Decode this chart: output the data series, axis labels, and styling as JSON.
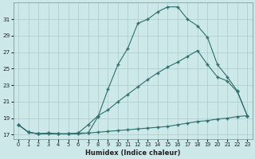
{
  "xlabel": "Humidex (Indice chaleur)",
  "bg_color": "#cce8e8",
  "line_color": "#2e6e6e",
  "grid_color": "#aacccc",
  "xlim": [
    -0.5,
    23.5
  ],
  "ylim": [
    16.5,
    33.0
  ],
  "yticks": [
    17,
    19,
    21,
    23,
    25,
    27,
    29,
    31
  ],
  "xticks": [
    0,
    1,
    2,
    3,
    4,
    5,
    6,
    7,
    8,
    9,
    10,
    11,
    12,
    13,
    14,
    15,
    16,
    17,
    18,
    19,
    20,
    21,
    22,
    23
  ],
  "curve1_x": [
    0,
    1,
    2,
    3,
    4,
    5,
    6,
    7,
    8,
    9,
    10,
    11,
    12,
    13,
    14,
    15,
    16,
    17,
    18,
    19,
    20,
    21,
    22,
    23
  ],
  "curve1_y": [
    18.2,
    17.3,
    17.1,
    17.1,
    17.1,
    17.1,
    17.1,
    17.2,
    17.3,
    17.4,
    17.5,
    17.6,
    17.7,
    17.8,
    17.9,
    18.0,
    18.2,
    18.4,
    18.6,
    18.7,
    18.9,
    19.0,
    19.2,
    19.3
  ],
  "curve2_x": [
    0,
    1,
    2,
    3,
    4,
    5,
    6,
    7,
    8,
    9,
    10,
    11,
    12,
    13,
    14,
    15,
    16,
    17,
    18,
    19,
    20,
    21,
    22,
    23
  ],
  "curve2_y": [
    18.2,
    17.3,
    17.1,
    17.2,
    17.1,
    17.1,
    17.2,
    18.2,
    19.3,
    20.0,
    21.0,
    21.9,
    22.8,
    23.7,
    24.5,
    25.2,
    25.8,
    26.5,
    27.2,
    25.5,
    24.0,
    23.5,
    22.2,
    19.3
  ],
  "curve3_x": [
    0,
    1,
    2,
    3,
    4,
    5,
    6,
    7,
    8,
    9,
    10,
    11,
    12,
    13,
    14,
    15,
    16,
    17,
    18,
    19,
    20,
    21,
    22,
    23
  ],
  "curve3_y": [
    18.2,
    17.3,
    17.1,
    17.2,
    17.1,
    17.1,
    17.2,
    17.2,
    19.2,
    22.5,
    25.5,
    27.5,
    30.5,
    31.0,
    31.9,
    32.5,
    32.5,
    31.0,
    30.2,
    28.8,
    25.5,
    24.0,
    22.3,
    19.3
  ]
}
